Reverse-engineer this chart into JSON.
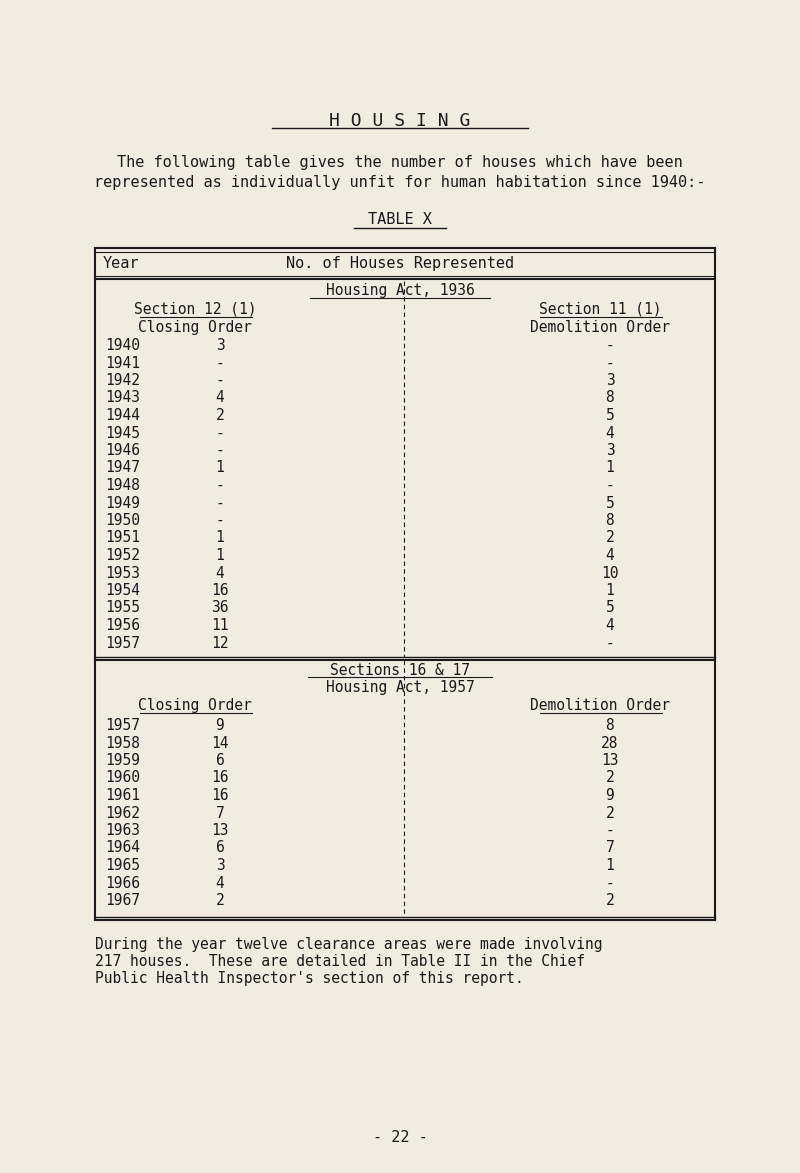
{
  "bg_color": "#f0ece0",
  "title": "H O U S I N G",
  "intro_line1": "The following table gives the number of houses which have been",
  "intro_line2": "represented as individually unfit for human habitation since 1940:-",
  "table_title": "TABLE X",
  "header_year": "Year",
  "header_no": "No. of Houses Represented",
  "act1936_label": "Housing Act, 1936",
  "sec12_label": "Section 12 (1)",
  "sec12_sub": "Closing Order",
  "sec11_label": "Section 11 (1)",
  "sec11_sub": "Demolition Order",
  "act1957_label": "Sections 16 & 17",
  "act1957_label2": "Housing Act, 1957",
  "close1957_label": "Closing Order",
  "demo1957_label": "Demolition Order",
  "rows_1936": [
    [
      "1940",
      "3",
      "-"
    ],
    [
      "1941",
      "-",
      "-"
    ],
    [
      "1942",
      "-",
      "3"
    ],
    [
      "1943",
      "4",
      "8"
    ],
    [
      "1944",
      "2",
      "5"
    ],
    [
      "1945",
      "-",
      "4"
    ],
    [
      "1946",
      "-",
      "3"
    ],
    [
      "1947",
      "1",
      "1"
    ],
    [
      "1948",
      "-",
      "-"
    ],
    [
      "1949",
      "-",
      "5"
    ],
    [
      "1950",
      "-",
      "8"
    ],
    [
      "1951",
      "1",
      "2"
    ],
    [
      "1952",
      "1",
      "4"
    ],
    [
      "1953",
      "4",
      "10"
    ],
    [
      "1954",
      "16",
      "1"
    ],
    [
      "1955",
      "36",
      "5"
    ],
    [
      "1956",
      "11",
      "4"
    ],
    [
      "1957",
      "12",
      "-"
    ]
  ],
  "rows_1957": [
    [
      "1957",
      "9",
      "8"
    ],
    [
      "1958",
      "14",
      "28"
    ],
    [
      "1959",
      "6",
      "13"
    ],
    [
      "1960",
      "16",
      "2"
    ],
    [
      "1961",
      "16",
      "9"
    ],
    [
      "1962",
      "7",
      "2"
    ],
    [
      "1963",
      "13",
      "-"
    ],
    [
      "1964",
      "6",
      "7"
    ],
    [
      "1965",
      "3",
      "1"
    ],
    [
      "1966",
      "4",
      "-"
    ],
    [
      "1967",
      "2",
      "2"
    ]
  ],
  "footer_line1": "During the year twelve clearance areas were made involving",
  "footer_line2": "217 houses.  These are detailed in Table II in the Chief",
  "footer_line3": "Public Health Inspector's section of this report.",
  "page_number": "- 22 -"
}
